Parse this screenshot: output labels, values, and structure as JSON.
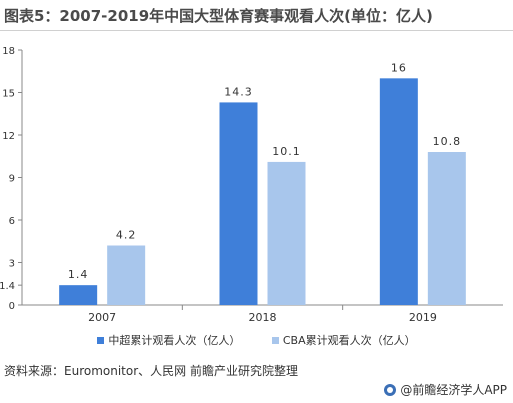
{
  "title": "图表5：2007-2019年中国大型体育赛事观看人次(单位：亿人)",
  "source": "资料来源：Euromonitor、人民网 前瞻产业研究院整理",
  "brand": "@前瞻经济学人APP",
  "colors": {
    "series1": "#3f7fd9",
    "series2": "#a8c6ec",
    "axis": "#888888"
  },
  "chart_data": {
    "type": "bar",
    "title": "",
    "xlabel": "",
    "ylabel": "",
    "categories": [
      "2007",
      "2018",
      "2019"
    ],
    "series": [
      {
        "name": "中超累计观看人次（亿人）",
        "values": [
          1.4,
          14.3,
          16
        ],
        "labels": [
          "1.4",
          "14.3",
          "16"
        ]
      },
      {
        "name": "CBA累计观看人次（亿人）",
        "values": [
          4.2,
          10.1,
          10.8
        ],
        "labels": [
          "4.2",
          "10.1",
          "10.8"
        ]
      }
    ],
    "y_ticks": [
      {
        "label": "0",
        "value": 0
      },
      {
        "label": "1.4",
        "value": 1.4
      },
      {
        "label": "3",
        "value": 3
      },
      {
        "label": "6",
        "value": 6
      },
      {
        "label": "9",
        "value": 9
      },
      {
        "label": "12",
        "value": 12
      },
      {
        "label": "15",
        "value": 15
      },
      {
        "label": "18",
        "value": 18
      }
    ],
    "ylim": [
      0,
      18
    ],
    "grid": false,
    "legend": "bottom"
  }
}
